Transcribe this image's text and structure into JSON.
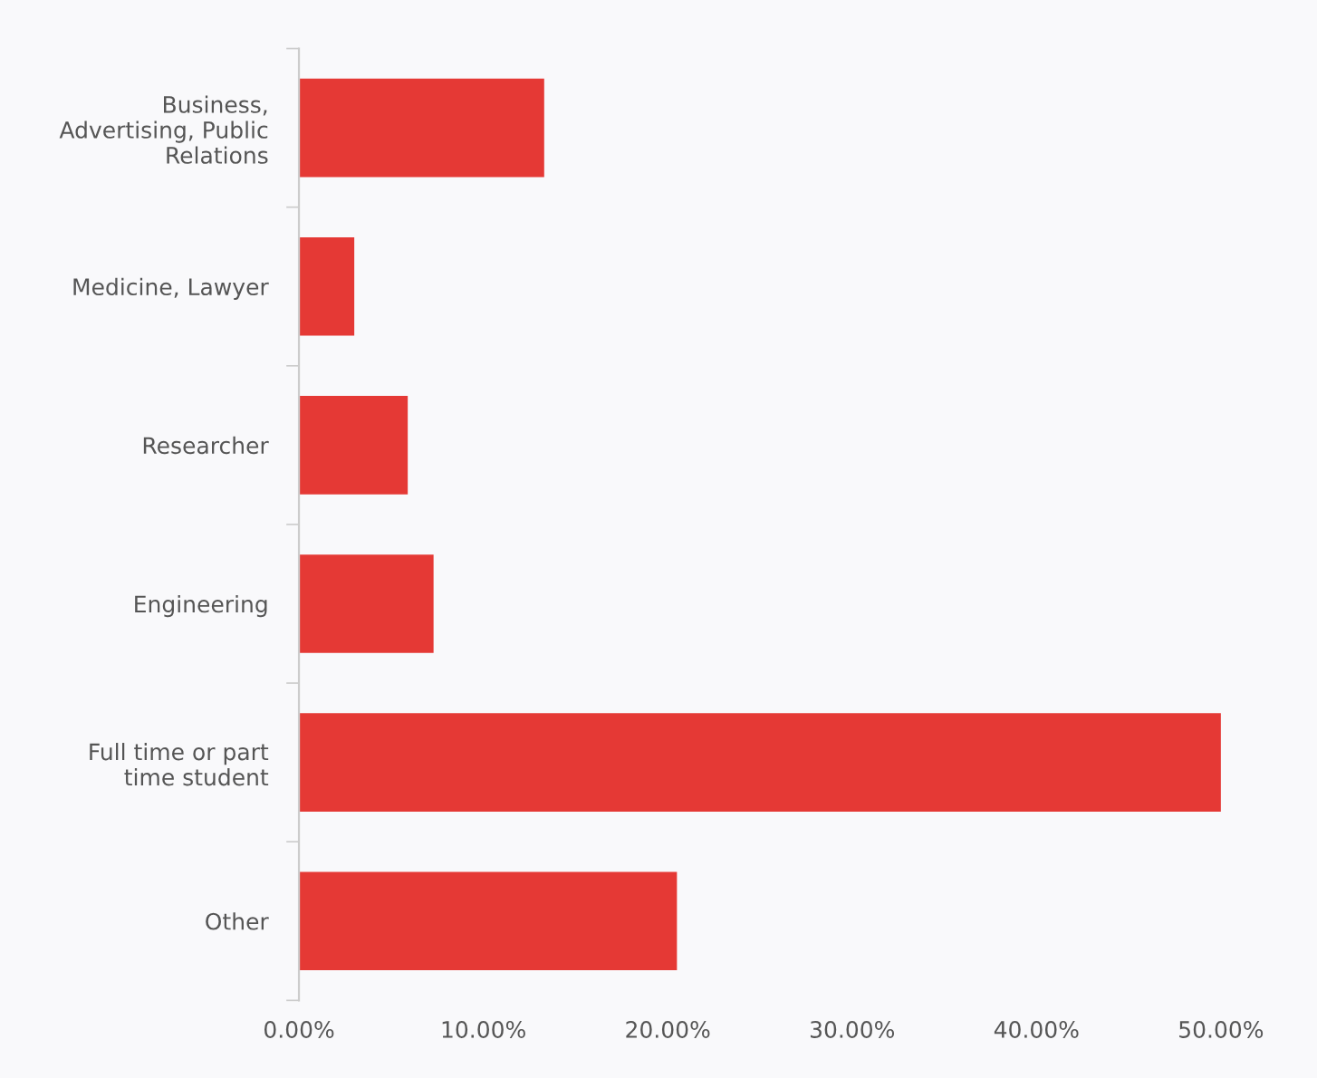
{
  "chart_data": {
    "type": "bar",
    "orientation": "horizontal",
    "categories": [
      "Business,\nAdvertising, Public\nRelations",
      "Medicine, Lawyer",
      "Researcher",
      "Engineering",
      "Full time or part\ntime student",
      "Other"
    ],
    "values": [
      13.3,
      3.0,
      5.9,
      7.3,
      50.0,
      20.5
    ],
    "color": "#e53935",
    "xlim": [
      0,
      55
    ],
    "xticks": [
      {
        "value": 0,
        "label": "0.00%"
      },
      {
        "value": 10,
        "label": "10.00%"
      },
      {
        "value": 20,
        "label": "20.00%"
      },
      {
        "value": 30,
        "label": "30.00%"
      },
      {
        "value": 40,
        "label": "40.00%"
      },
      {
        "value": 50,
        "label": "50.00%"
      }
    ],
    "grid": false,
    "legend": false
  }
}
